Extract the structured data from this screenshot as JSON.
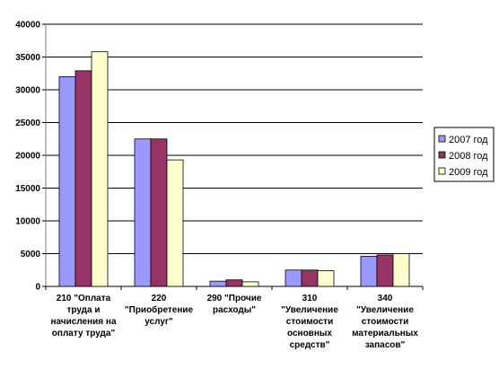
{
  "chart_data": {
    "type": "bar",
    "title": "",
    "xlabel": "",
    "ylabel": "",
    "ylim": [
      0,
      40000
    ],
    "yticks": [
      0,
      5000,
      10000,
      15000,
      20000,
      25000,
      30000,
      35000,
      40000
    ],
    "grid": true,
    "legend_position": "right",
    "categories": [
      [
        "210 \"Оплата",
        "труда и",
        "начисления на",
        "оплату труда\""
      ],
      [
        "220",
        "\"Приобретение",
        "услуг\""
      ],
      [
        "290 \"Прочие",
        "расходы\""
      ],
      [
        "310",
        "\"Увеличение",
        "стоимости",
        "основных",
        "средств\""
      ],
      [
        "340",
        "\"Увеличение",
        "стоимости",
        "материальных",
        "запасов\""
      ]
    ],
    "series": [
      {
        "name": "2007 год",
        "color": "#9999ff",
        "values": [
          32000,
          22500,
          800,
          2500,
          4600
        ]
      },
      {
        "name": "2008 год",
        "color": "#993366",
        "values": [
          32900,
          22500,
          1000,
          2500,
          4800
        ]
      },
      {
        "name": "2009 год",
        "color": "#ffffcc",
        "values": [
          35800,
          19300,
          700,
          2400,
          5000
        ]
      }
    ]
  }
}
